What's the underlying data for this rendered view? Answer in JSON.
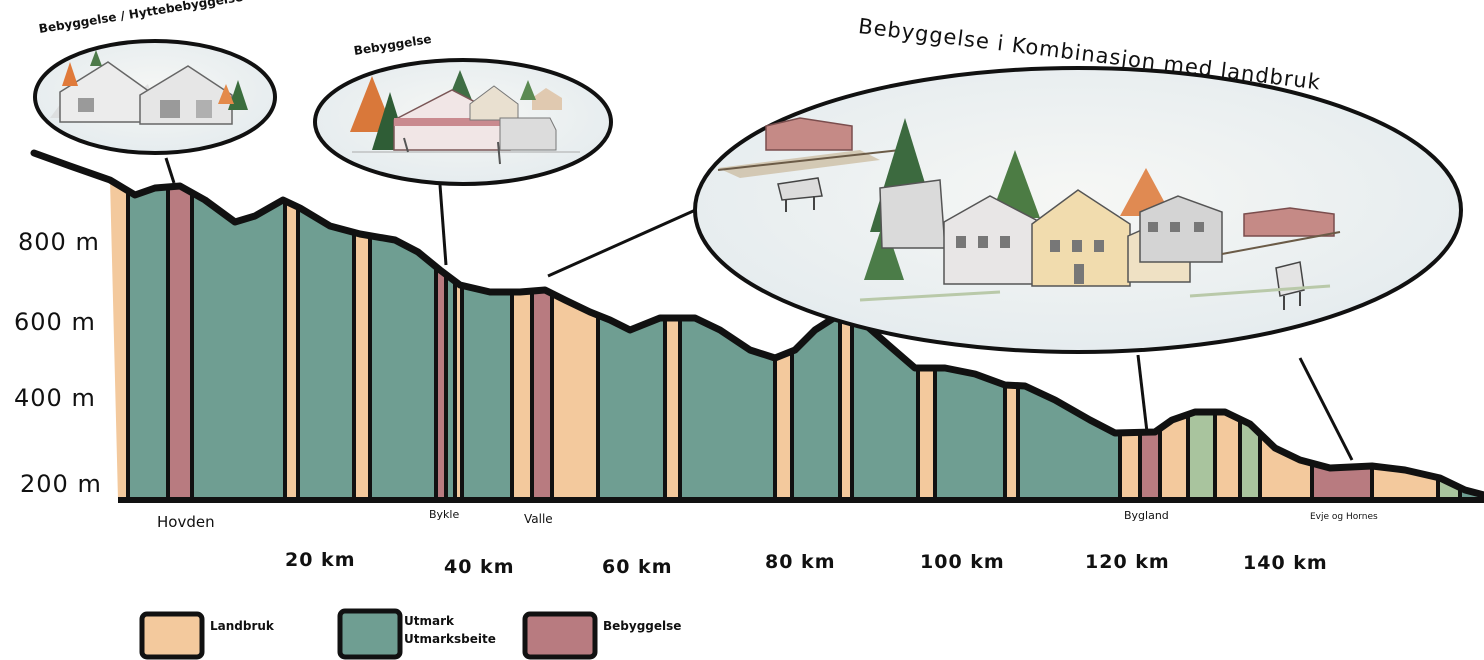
{
  "profile": {
    "y_axis_labels": [
      "800 m",
      "600 m",
      "400 m",
      "200 m"
    ],
    "x_axis_labels": [
      "20 km",
      "40 km",
      "60 km",
      "80 km",
      "100 km",
      "120 km",
      "140 km"
    ],
    "places": [
      "Hovden",
      "Bykle",
      "Valle",
      "Bygland",
      "Evje og Hornes"
    ]
  },
  "callouts": {
    "hyttebebyggelse": "Bebyggelse / Hyttebebyggelse",
    "bebyggelse": "Bebyggelse",
    "kombinasjon": "Bebyggelse i Kombinasjon med landbruk"
  },
  "legend": {
    "landbruk": "Landbruk",
    "utmark_line1": "Utmark",
    "utmark_line2": "Utmarksbeite",
    "bebyggelse": "Bebyggelse"
  },
  "colors": {
    "landbruk": "#f3c99d",
    "utmark": "#6f9e92",
    "bebyggelse": "#b87b80",
    "beite_light": "#a9c49e",
    "outline": "#111111"
  }
}
